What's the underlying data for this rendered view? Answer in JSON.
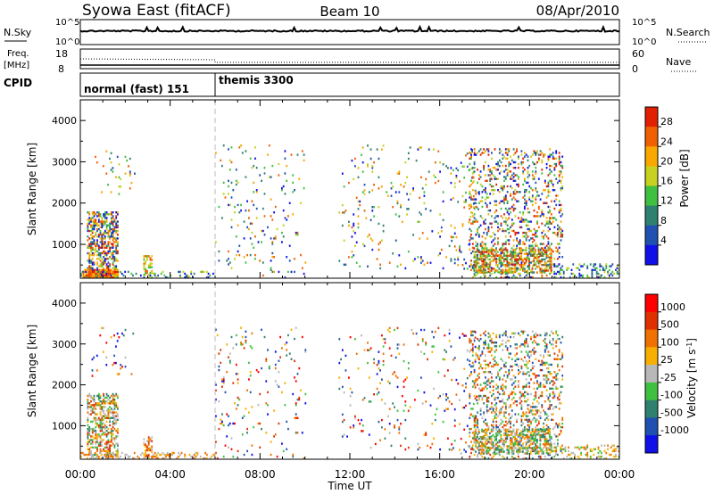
{
  "header": {
    "station": "Syowa East (fitACF)",
    "beam": "Beam 10",
    "date": "08/Apr/2010"
  },
  "summary_panels": {
    "nsky_label": "N.Sky",
    "nsearch_label": "N.Search",
    "noise_ticks": [
      "10^5",
      "10^0"
    ],
    "freq_label_top": "Freq.",
    "freq_label_units": "[MHz]",
    "freq_ticks": [
      "18",
      "8"
    ],
    "nave_label": "Nave",
    "nave_ticks": [
      "60",
      "0"
    ],
    "cpid_label": "CPID",
    "cpid_modes": [
      {
        "name": "normal (fast) 151",
        "start_hour": 0,
        "end_hour": 6
      },
      {
        "name": "themis 3300",
        "start_hour": 6,
        "end_hour": 24
      }
    ]
  },
  "chart_data": [
    {
      "type": "heatmap",
      "parameter": "Power",
      "ylabel": "Slant Range [km]",
      "xlabel": "Time UT",
      "xlim": [
        0,
        24
      ],
      "ylim": [
        180,
        4500
      ],
      "x_ticks": [
        "00:00",
        "04:00",
        "08:00",
        "12:00",
        "16:00",
        "20:00",
        "00:00"
      ],
      "y_ticks": [
        "1000",
        "2000",
        "3000",
        "4000"
      ],
      "colorbar": {
        "label": "Power [dB]",
        "range": [
          0,
          32
        ],
        "ticks": [
          "4",
          "8",
          "12",
          "16",
          "20",
          "24",
          "28"
        ],
        "colors": [
          "#1010e8",
          "#2050b0",
          "#308070",
          "#40c040",
          "#c8d020",
          "#f8a800",
          "#f06000",
          "#e02000"
        ]
      },
      "mode_change_hour": 6,
      "scatter_regions": [
        {
          "t0": 0.3,
          "t1": 1.7,
          "r0": 180,
          "r1": 1800,
          "density": 0.55,
          "cmin": 0,
          "cmax": 7
        },
        {
          "t0": 0.1,
          "t1": 1.7,
          "r0": 180,
          "r1": 400,
          "density": 0.9,
          "cmin": 5,
          "cmax": 7
        },
        {
          "t0": 0.0,
          "t1": 6.0,
          "r0": 180,
          "r1": 350,
          "density": 0.18,
          "cmin": 0,
          "cmax": 4
        },
        {
          "t0": 0.5,
          "t1": 2.5,
          "r0": 2200,
          "r1": 3400,
          "density": 0.05,
          "cmin": 1,
          "cmax": 6
        },
        {
          "t0": 2.8,
          "t1": 3.2,
          "r0": 200,
          "r1": 700,
          "density": 0.5,
          "cmin": 3,
          "cmax": 6
        },
        {
          "t0": 6.0,
          "t1": 10.0,
          "r0": 180,
          "r1": 3400,
          "density": 0.04,
          "cmin": 0,
          "cmax": 6
        },
        {
          "t0": 11.5,
          "t1": 16.5,
          "r0": 400,
          "r1": 3400,
          "density": 0.035,
          "cmin": 0,
          "cmax": 6
        },
        {
          "t0": 16.5,
          "t1": 17.7,
          "r0": 300,
          "r1": 3300,
          "density": 0.05,
          "cmin": 0,
          "cmax": 6
        },
        {
          "t0": 17.3,
          "t1": 21.5,
          "r0": 180,
          "r1": 3300,
          "density": 0.22,
          "cmin": 0,
          "cmax": 7
        },
        {
          "t0": 17.5,
          "t1": 21.0,
          "r0": 300,
          "r1": 900,
          "density": 0.55,
          "cmin": 2,
          "cmax": 7
        },
        {
          "t0": 21.0,
          "t1": 24.0,
          "r0": 180,
          "r1": 500,
          "density": 0.25,
          "cmin": 0,
          "cmax": 4
        }
      ]
    },
    {
      "type": "heatmap",
      "parameter": "Velocity",
      "ylabel": "Slant Range [km]",
      "xlabel": "Time UT",
      "xlim": [
        0,
        24
      ],
      "ylim": [
        180,
        4500
      ],
      "x_ticks": [
        "00:00",
        "04:00",
        "08:00",
        "12:00",
        "16:00",
        "20:00",
        "00:00"
      ],
      "y_ticks": [
        "1000",
        "2000",
        "3000",
        "4000"
      ],
      "colorbar": {
        "label": "Velocity [m s",
        "label_exp": "-1",
        "label_close": "]",
        "ticks": [
          "1000",
          "500",
          "100",
          "25",
          "-25",
          "-100",
          "-500",
          "-1000"
        ],
        "colors": [
          "#1010e8",
          "#2050b0",
          "#308070",
          "#40c040",
          "#b8b8b8",
          "#f8b000",
          "#f07000",
          "#e03000",
          "#ff0000"
        ]
      },
      "mode_change_hour": 6,
      "scatter_regions": [
        {
          "t0": 0.3,
          "t1": 1.7,
          "r0": 180,
          "r1": 1800,
          "density": 0.5,
          "cmin": 2,
          "cmax": 7
        },
        {
          "t0": 0.0,
          "t1": 6.0,
          "r0": 180,
          "r1": 350,
          "density": 0.3,
          "cmin": 4,
          "cmax": 6
        },
        {
          "t0": 0.5,
          "t1": 2.5,
          "r0": 2200,
          "r1": 3400,
          "density": 0.05,
          "cmin": 0,
          "cmax": 8
        },
        {
          "t0": 2.8,
          "t1": 3.2,
          "r0": 200,
          "r1": 700,
          "density": 0.5,
          "cmin": 4,
          "cmax": 7
        },
        {
          "t0": 6.0,
          "t1": 10.0,
          "r0": 180,
          "r1": 3400,
          "density": 0.04,
          "cmin": 0,
          "cmax": 8
        },
        {
          "t0": 11.5,
          "t1": 16.5,
          "r0": 400,
          "r1": 3400,
          "density": 0.035,
          "cmin": 0,
          "cmax": 8
        },
        {
          "t0": 16.5,
          "t1": 17.7,
          "r0": 300,
          "r1": 3300,
          "density": 0.05,
          "cmin": 0,
          "cmax": 8
        },
        {
          "t0": 17.3,
          "t1": 21.5,
          "r0": 180,
          "r1": 3300,
          "density": 0.22,
          "cmin": 1,
          "cmax": 7
        },
        {
          "t0": 17.5,
          "t1": 21.0,
          "r0": 300,
          "r1": 900,
          "density": 0.5,
          "cmin": 2,
          "cmax": 6
        },
        {
          "t0": 21.0,
          "t1": 24.0,
          "r0": 180,
          "r1": 500,
          "density": 0.25,
          "cmin": 3,
          "cmax": 6
        }
      ]
    }
  ]
}
